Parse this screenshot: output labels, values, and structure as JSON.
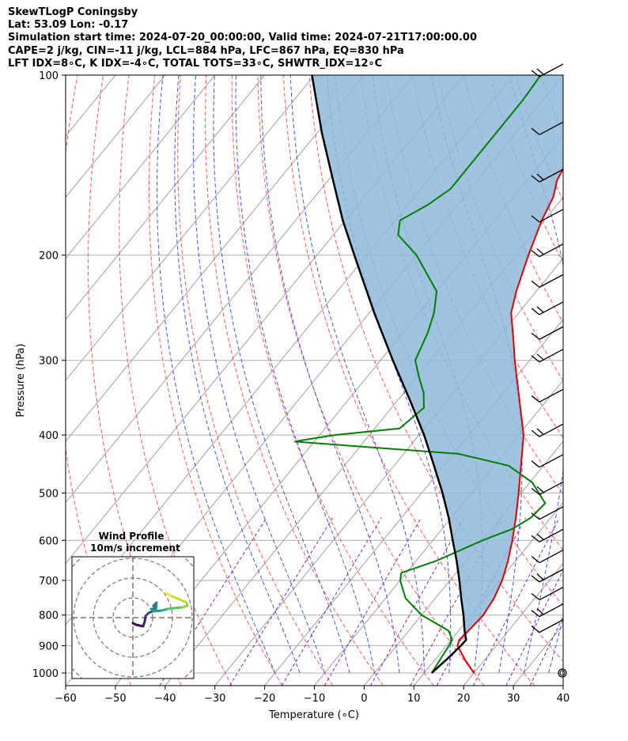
{
  "header": {
    "line1": "SkewTLogP Coningsby",
    "line2": "Lat: 53.09   Lon: -0.17",
    "line3": "Simulation start time: 2024-07-20_00:00:00, Valid time: 2024-07-21T17:00:00.00",
    "line4": "CAPE=2 j/kg, CIN=-11 j/kg, LCL=884 hPa, LFC=867 hPa, EQ=830 hPa",
    "line5": "LFT IDX=8∘C, K IDX=-4∘C, TOTAL TOTS=33∘C, SHWTR_IDX=12∘C"
  },
  "colors": {
    "temperature": "#e00000",
    "dewpoint": "#008000",
    "parcel": "#000000",
    "cape_fill": "#8fb9d9",
    "dry_adiabat": "#ff5555",
    "moist_adiabat": "#4455ee",
    "mixing_ratio": "#7a2ab5",
    "isotherm": "#a0a0a0",
    "grid": "#b0b0b0"
  },
  "chart_data": {
    "type": "skewt",
    "xlabel": "Temperature (∘C)",
    "ylabel": "Pressure (hPa)",
    "xlim": [
      -60,
      40
    ],
    "ylim": [
      1050,
      100
    ],
    "xticks": [
      -60,
      -50,
      -40,
      -30,
      -20,
      -10,
      0,
      10,
      20,
      30,
      40
    ],
    "yticks": [
      1000,
      900,
      800,
      700,
      600,
      500,
      400,
      300,
      200,
      100
    ],
    "temperature_profile": [
      [
        1000,
        20.0
      ],
      [
        950,
        16.0
      ],
      [
        900,
        12.2
      ],
      [
        880,
        11.6
      ],
      [
        850,
        12.0
      ],
      [
        800,
        12.4
      ],
      [
        750,
        11.8
      ],
      [
        700,
        10.5
      ],
      [
        650,
        8.5
      ],
      [
        600,
        6.0
      ],
      [
        550,
        3.0
      ],
      [
        500,
        -0.5
      ],
      [
        450,
        -4.5
      ],
      [
        400,
        -9.0
      ],
      [
        350,
        -15.5
      ],
      [
        300,
        -23.0
      ],
      [
        275,
        -27.0
      ],
      [
        250,
        -31.5
      ],
      [
        230,
        -34.0
      ],
      [
        200,
        -37.5
      ],
      [
        175,
        -40.5
      ],
      [
        160,
        -42.0
      ],
      [
        150,
        -44.0
      ],
      [
        140,
        -45.0
      ],
      [
        130,
        -46.0
      ],
      [
        120,
        -47.5
      ],
      [
        110,
        -49.0
      ],
      [
        100,
        -51.0
      ]
    ],
    "dewpoint_profile": [
      [
        1000,
        11.5
      ],
      [
        950,
        11.0
      ],
      [
        900,
        10.5
      ],
      [
        880,
        10.2
      ],
      [
        850,
        8.0
      ],
      [
        800,
        0.0
      ],
      [
        750,
        -6.0
      ],
      [
        700,
        -10.0
      ],
      [
        680,
        -11.0
      ],
      [
        650,
        -6.0
      ],
      [
        600,
        0.0
      ],
      [
        575,
        4.0
      ],
      [
        550,
        6.0
      ],
      [
        520,
        6.5
      ],
      [
        480,
        0.5
      ],
      [
        450,
        -7.0
      ],
      [
        430,
        -19.0
      ],
      [
        410,
        -54.0
      ],
      [
        400,
        -47.0
      ],
      [
        390,
        -35.0
      ],
      [
        360,
        -33.5
      ],
      [
        340,
        -36.0
      ],
      [
        320,
        -39.5
      ],
      [
        300,
        -43.0
      ],
      [
        270,
        -45.0
      ],
      [
        250,
        -47.0
      ],
      [
        230,
        -50.0
      ],
      [
        200,
        -60.0
      ],
      [
        185,
        -67.0
      ],
      [
        175,
        -69.0
      ],
      [
        165,
        -66.0
      ],
      [
        155,
        -64.0
      ],
      [
        140,
        -64.0
      ],
      [
        125,
        -64.0
      ],
      [
        110,
        -64.0
      ],
      [
        100,
        -64.5
      ]
    ],
    "parcel_profile": [
      [
        1000,
        11.5
      ],
      [
        950,
        12.3
      ],
      [
        900,
        12.9
      ],
      [
        880,
        13.0
      ],
      [
        850,
        11.2
      ],
      [
        800,
        8.4
      ],
      [
        750,
        5.2
      ],
      [
        700,
        1.9
      ],
      [
        650,
        -1.8
      ],
      [
        600,
        -6.0
      ],
      [
        550,
        -10.5
      ],
      [
        500,
        -15.8
      ],
      [
        450,
        -22.0
      ],
      [
        400,
        -29.0
      ],
      [
        350,
        -37.5
      ],
      [
        300,
        -47.5
      ],
      [
        250,
        -59.0
      ],
      [
        200,
        -72.5
      ],
      [
        175,
        -80.5
      ],
      [
        150,
        -89.0
      ],
      [
        125,
        -99.0
      ],
      [
        100,
        -110.5
      ]
    ],
    "inset": {
      "title": "Wind Profile",
      "subtitle": "10m/s increment"
    }
  }
}
